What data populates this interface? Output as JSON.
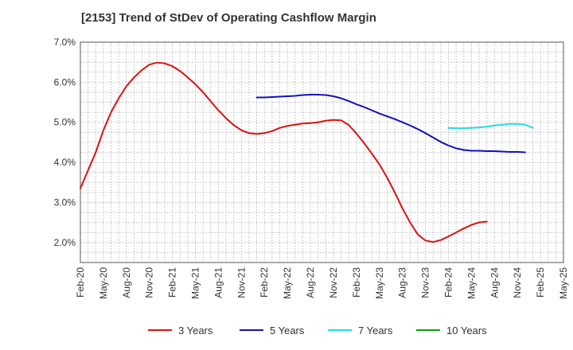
{
  "chart_data": {
    "type": "line",
    "title": "[2153]  Trend of StDev of Operating Cashflow Margin",
    "xlabel": "",
    "ylabel": "",
    "x_ticks": [
      "Feb-20",
      "May-20",
      "Aug-20",
      "Nov-20",
      "Feb-21",
      "May-21",
      "Aug-21",
      "Nov-21",
      "Feb-22",
      "May-22",
      "Aug-22",
      "Nov-22",
      "Feb-23",
      "May-23",
      "Aug-23",
      "Nov-23",
      "Feb-24",
      "May-24",
      "Aug-24",
      "Nov-24",
      "Feb-25",
      "May-25"
    ],
    "y_ticks": [
      "2.0%",
      "3.0%",
      "4.0%",
      "5.0%",
      "6.0%",
      "7.0%"
    ],
    "ylim": [
      1.5,
      7.0
    ],
    "grid": true,
    "legend_position": "bottom",
    "series": [
      {
        "name": "3 Years",
        "color": "#dd1111",
        "points": [
          [
            "Feb-20",
            3.35
          ],
          [
            "Mar-20",
            3.8
          ],
          [
            "Apr-20",
            4.25
          ],
          [
            "May-20",
            4.8
          ],
          [
            "Jun-20",
            5.25
          ],
          [
            "Jul-20",
            5.6
          ],
          [
            "Aug-20",
            5.9
          ],
          [
            "Sep-20",
            6.12
          ],
          [
            "Oct-20",
            6.3
          ],
          [
            "Nov-20",
            6.44
          ],
          [
            "Dec-20",
            6.49
          ],
          [
            "Jan-21",
            6.47
          ],
          [
            "Feb-21",
            6.4
          ],
          [
            "Mar-21",
            6.28
          ],
          [
            "Apr-21",
            6.12
          ],
          [
            "May-21",
            5.95
          ],
          [
            "Jun-21",
            5.75
          ],
          [
            "Jul-21",
            5.52
          ],
          [
            "Aug-21",
            5.3
          ],
          [
            "Sep-21",
            5.1
          ],
          [
            "Oct-21",
            4.93
          ],
          [
            "Nov-21",
            4.8
          ],
          [
            "Dec-21",
            4.73
          ],
          [
            "Jan-22",
            4.71
          ],
          [
            "Feb-22",
            4.73
          ],
          [
            "Mar-22",
            4.78
          ],
          [
            "Apr-22",
            4.86
          ],
          [
            "May-22",
            4.91
          ],
          [
            "Jun-22",
            4.94
          ],
          [
            "Jul-22",
            4.97
          ],
          [
            "Aug-22",
            4.98
          ],
          [
            "Sep-22",
            5.0
          ],
          [
            "Oct-22",
            5.04
          ],
          [
            "Nov-22",
            5.06
          ],
          [
            "Dec-22",
            5.05
          ],
          [
            "Jan-23",
            4.93
          ],
          [
            "Feb-23",
            4.72
          ],
          [
            "Mar-23",
            4.48
          ],
          [
            "Apr-23",
            4.22
          ],
          [
            "May-23",
            3.95
          ],
          [
            "Jun-23",
            3.62
          ],
          [
            "Jul-23",
            3.25
          ],
          [
            "Aug-23",
            2.85
          ],
          [
            "Sep-23",
            2.5
          ],
          [
            "Oct-23",
            2.2
          ],
          [
            "Nov-23",
            2.05
          ],
          [
            "Dec-23",
            2.01
          ],
          [
            "Jan-24",
            2.06
          ],
          [
            "Feb-24",
            2.15
          ],
          [
            "Mar-24",
            2.25
          ],
          [
            "Apr-24",
            2.35
          ],
          [
            "May-24",
            2.44
          ],
          [
            "Jun-24",
            2.5
          ],
          [
            "Jul-24",
            2.52
          ]
        ]
      },
      {
        "name": "5 Years",
        "color": "#1111bb",
        "points": [
          [
            "Jan-22",
            5.62
          ],
          [
            "Feb-22",
            5.62
          ],
          [
            "Mar-22",
            5.63
          ],
          [
            "Apr-22",
            5.64
          ],
          [
            "May-22",
            5.65
          ],
          [
            "Jun-22",
            5.66
          ],
          [
            "Jul-22",
            5.68
          ],
          [
            "Aug-22",
            5.69
          ],
          [
            "Sep-22",
            5.69
          ],
          [
            "Oct-22",
            5.68
          ],
          [
            "Nov-22",
            5.65
          ],
          [
            "Dec-22",
            5.6
          ],
          [
            "Jan-23",
            5.53
          ],
          [
            "Feb-23",
            5.45
          ],
          [
            "Mar-23",
            5.38
          ],
          [
            "Apr-23",
            5.3
          ],
          [
            "May-23",
            5.22
          ],
          [
            "Jun-23",
            5.15
          ],
          [
            "Jul-23",
            5.08
          ],
          [
            "Aug-23",
            5.0
          ],
          [
            "Sep-23",
            4.92
          ],
          [
            "Oct-23",
            4.83
          ],
          [
            "Nov-23",
            4.73
          ],
          [
            "Dec-23",
            4.62
          ],
          [
            "Jan-24",
            4.51
          ],
          [
            "Feb-24",
            4.42
          ],
          [
            "Mar-24",
            4.35
          ],
          [
            "Apr-24",
            4.31
          ],
          [
            "May-24",
            4.29
          ],
          [
            "Jun-24",
            4.29
          ],
          [
            "Jul-24",
            4.28
          ],
          [
            "Aug-24",
            4.28
          ],
          [
            "Sep-24",
            4.27
          ],
          [
            "Oct-24",
            4.26
          ],
          [
            "Nov-24",
            4.26
          ],
          [
            "Dec-24",
            4.25
          ]
        ]
      },
      {
        "name": "7 Years",
        "color": "#22dddd",
        "points": [
          [
            "Feb-24",
            4.86
          ],
          [
            "Mar-24",
            4.85
          ],
          [
            "Apr-24",
            4.85
          ],
          [
            "May-24",
            4.86
          ],
          [
            "Jun-24",
            4.87
          ],
          [
            "Jul-24",
            4.89
          ],
          [
            "Aug-24",
            4.92
          ],
          [
            "Sep-24",
            4.94
          ],
          [
            "Oct-24",
            4.96
          ],
          [
            "Nov-24",
            4.96
          ],
          [
            "Dec-24",
            4.94
          ],
          [
            "Jan-25",
            4.86
          ]
        ]
      },
      {
        "name": "10 Years",
        "color": "#119911",
        "points": []
      }
    ]
  }
}
